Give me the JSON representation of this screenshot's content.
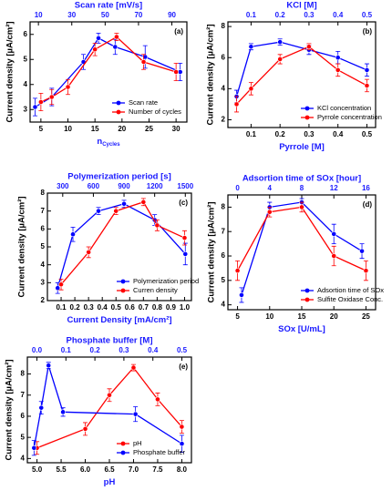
{
  "chart_data": [
    {
      "type": "line",
      "panel_label": "(a)",
      "x2label": "Scan rate [mV/s]",
      "xlabel": "n",
      "xlabel_subscript": "Cycles",
      "ylabel": "Current density [µA/cm²]",
      "xlim": [
        3,
        32
      ],
      "xticks": [
        5,
        10,
        15,
        20,
        25,
        30
      ],
      "x2lim": [
        5,
        99
      ],
      "x2ticks": [
        10,
        30,
        50,
        70,
        90
      ],
      "ylim": [
        2.5,
        6.5
      ],
      "yticks": [
        3,
        4,
        5,
        6
      ],
      "legend": "lower right",
      "series": [
        {
          "name": "Scan rate",
          "color": "#0000ff",
          "axis": "x2",
          "x": [
            8,
            18,
            37,
            46,
            56,
            74,
            95
          ],
          "values": [
            3.1,
            3.5,
            4.9,
            5.85,
            5.5,
            5.1,
            4.5
          ],
          "errors": [
            0.35,
            0.35,
            0.3,
            0.2,
            0.3,
            0.45,
            0.35
          ]
        },
        {
          "name": "Number of cycles",
          "color": "#ff0000",
          "axis": "x",
          "x": [
            5,
            7,
            10,
            15,
            19,
            24,
            30
          ],
          "values": [
            3.3,
            3.5,
            3.9,
            5.4,
            5.9,
            4.9,
            4.5
          ],
          "errors": [
            0.35,
            0.3,
            0.3,
            0.25,
            0.15,
            0.3,
            0.35
          ]
        }
      ]
    },
    {
      "type": "line",
      "panel_label": "(b)",
      "x2label": "KCl [M]",
      "xlabel": "Pyrrole [M]",
      "ylabel": "Current density [µA/cm²]",
      "xlim": [
        0.02,
        0.53
      ],
      "xticks": [
        0.1,
        0.2,
        0.3,
        0.4,
        0.5
      ],
      "x2lim": [
        0.02,
        0.53
      ],
      "x2ticks": [
        0.1,
        0.2,
        0.3,
        0.4,
        0.5
      ],
      "ylim": [
        1.5,
        8.3
      ],
      "yticks": [
        2,
        4,
        6,
        8
      ],
      "legend": "lower right",
      "series": [
        {
          "name": "KCl concentration",
          "color": "#0000ff",
          "axis": "x2",
          "x": [
            0.05,
            0.1,
            0.2,
            0.3,
            0.4,
            0.5
          ],
          "values": [
            3.5,
            6.7,
            7.0,
            6.5,
            6.0,
            5.2
          ],
          "errors": [
            0.4,
            0.2,
            0.2,
            0.3,
            0.4,
            0.4
          ]
        },
        {
          "name": "Pyrrole concentration",
          "color": "#ff0000",
          "axis": "x",
          "x": [
            0.05,
            0.1,
            0.2,
            0.3,
            0.4,
            0.5
          ],
          "values": [
            3.0,
            4.0,
            5.9,
            6.7,
            5.2,
            4.2
          ],
          "errors": [
            0.5,
            0.4,
            0.3,
            0.2,
            0.4,
            0.4
          ]
        }
      ]
    },
    {
      "type": "line",
      "panel_label": "(c)",
      "x2label": "Polymerization period [s]",
      "xlabel": "Current Density [mA/cm²]",
      "ylabel": "Current density [µA/cm²]",
      "xlim": [
        0,
        1.05
      ],
      "xticks": [
        0.1,
        0.2,
        0.3,
        0.4,
        0.5,
        0.6,
        0.7,
        0.8,
        0.9,
        {
          "value": 1,
          "label": "1.0"
        }
      ],
      "x2lim": [
        150,
        1560
      ],
      "x2ticks": [
        300,
        600,
        900,
        1200,
        1500
      ],
      "ylim": [
        2,
        8
      ],
      "yticks": [
        2,
        3,
        4,
        5,
        6,
        7,
        8
      ],
      "legend": "lower right",
      "series": [
        {
          "name": "Polymerization period",
          "color": "#0000ff",
          "axis": "x2",
          "x": [
            250,
            400,
            650,
            900,
            1200,
            1500
          ],
          "values": [
            2.7,
            5.7,
            7.0,
            7.4,
            6.5,
            4.6
          ],
          "errors": [
            0.3,
            0.4,
            0.2,
            0.2,
            0.3,
            0.6
          ]
        },
        {
          "name": "Curren density",
          "color": "#ff0000",
          "axis": "x",
          "x": [
            0.1,
            0.3,
            0.5,
            0.7,
            0.8,
            1
          ],
          "values": [
            2.9,
            4.7,
            7.0,
            7.5,
            6.2,
            5.5
          ],
          "errors": [
            0.3,
            0.3,
            0.2,
            0.2,
            0.3,
            0.4
          ]
        }
      ]
    },
    {
      "type": "line",
      "panel_label": "(d)",
      "x2label": "Adsortion time of SOx [hour]",
      "xlabel": "SOx [U/mL]",
      "ylabel": "Current density [µA/cm²]",
      "xlim": [
        3.5,
        26.5
      ],
      "xticks": [
        5,
        10,
        15,
        20,
        25
      ],
      "x2lim": [
        -1.2,
        17.2
      ],
      "x2ticks": [
        0,
        4,
        8,
        12,
        16
      ],
      "ylim": [
        3.8,
        8.5
      ],
      "yticks": [
        4,
        5,
        6,
        7,
        8
      ],
      "legend": "lower right",
      "series": [
        {
          "name": "Adsortion time of SOx",
          "color": "#0000ff",
          "axis": "x2",
          "x": [
            0.5,
            4,
            8,
            12,
            15.5
          ],
          "values": [
            4.4,
            8.0,
            8.2,
            6.9,
            6.2
          ],
          "errors": [
            0.3,
            0.2,
            0.15,
            0.4,
            0.3
          ]
        },
        {
          "name": "Sulfite Oxidase Conc.",
          "color": "#ff0000",
          "axis": "x",
          "x": [
            5,
            10,
            15,
            20,
            25
          ],
          "values": [
            5.4,
            7.8,
            8.0,
            6.0,
            5.4
          ],
          "errors": [
            0.4,
            0.2,
            0.2,
            0.4,
            0.4
          ]
        }
      ]
    },
    {
      "type": "line",
      "panel_label": "(e)",
      "x2label": "Phosphate buffer [M]",
      "xlabel": "pH",
      "ylabel": "Current density [µA/cm²]",
      "xlim": [
        4.8,
        8.2
      ],
      "xticks": [
        {
          "value": 5,
          "label": "5.0"
        },
        5.5,
        {
          "value": 6,
          "label": "6.0"
        },
        6.5,
        {
          "value": 7,
          "label": "7.0"
        },
        7.5,
        {
          "value": 8,
          "label": "8.0"
        }
      ],
      "x2lim": [
        -0.033,
        0.533
      ],
      "x2ticks": [
        {
          "value": 0,
          "label": "0.0"
        },
        0.1,
        0.2,
        0.3,
        0.4,
        0.5
      ],
      "ylim": [
        3.8,
        8.8
      ],
      "yticks": [
        4,
        5,
        6,
        7,
        8
      ],
      "legend": "lower right",
      "series": [
        {
          "name": "pH",
          "color": "#ff0000",
          "axis": "x",
          "x": [
            5,
            6,
            6.5,
            7,
            7.5,
            8
          ],
          "values": [
            4.5,
            5.4,
            7.0,
            8.3,
            6.8,
            5.5
          ],
          "errors": [
            0.3,
            0.3,
            0.3,
            0.15,
            0.3,
            0.3
          ]
        },
        {
          "name": "Phosphate buffer",
          "color": "#0000ff",
          "axis": "x2",
          "x": [
            -0.01,
            0.015,
            0.04,
            0.09,
            0.34,
            0.5
          ],
          "values": [
            4.5,
            6.4,
            8.4,
            6.2,
            6.1,
            4.7
          ],
          "errors": [
            0.35,
            0.3,
            0.15,
            0.2,
            0.35,
            0.4
          ]
        }
      ]
    }
  ]
}
